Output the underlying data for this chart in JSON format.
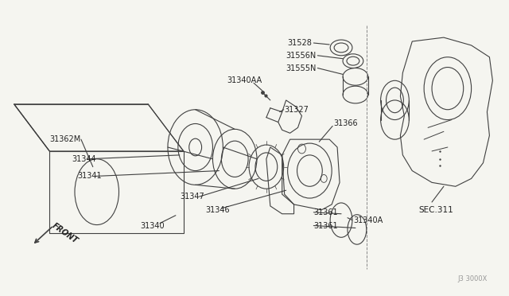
{
  "bg_color": "#f5f5f0",
  "line_color": "#404040",
  "text_color": "#222222",
  "watermark": "J3 3000X",
  "sec_label": "SEC.311",
  "front_label": "FRONT",
  "label_fs": 7.0,
  "watermark_fs": 6.0
}
